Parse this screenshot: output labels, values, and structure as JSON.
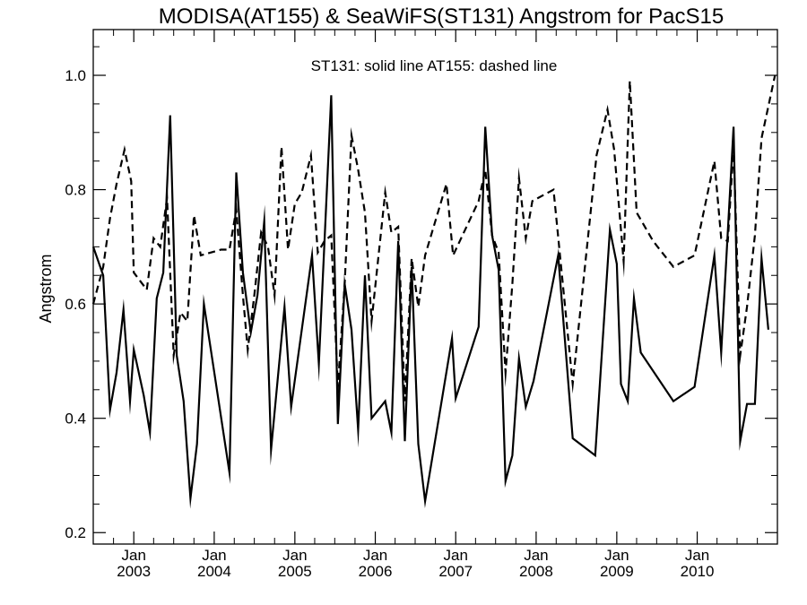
{
  "chart_data": {
    "type": "line",
    "title": "MODISA(AT155) & SeaWiFS(ST131)  Angstrom for PacS15",
    "annotation": "ST131: solid line   AT155: dashed line",
    "ylabel": "Angstrom",
    "xlabel": "",
    "xlim": [
      "2002-07-01",
      "2010-12-31"
    ],
    "ylim": [
      0.18,
      1.08
    ],
    "y_ticks": [
      0.2,
      0.4,
      0.6,
      0.8,
      1.0
    ],
    "y_tick_labels": [
      "0.2",
      "0.4",
      "0.6",
      "0.8",
      "1.0"
    ],
    "x_ticks": [
      {
        "date": "2003-01-01",
        "month": "Jan",
        "year": "2003"
      },
      {
        "date": "2004-01-01",
        "month": "Jan",
        "year": "2004"
      },
      {
        "date": "2005-01-01",
        "month": "Jan",
        "year": "2005"
      },
      {
        "date": "2006-01-01",
        "month": "Jan",
        "year": "2006"
      },
      {
        "date": "2007-01-01",
        "month": "Jan",
        "year": "2007"
      },
      {
        "date": "2008-01-01",
        "month": "Jan",
        "year": "2008"
      },
      {
        "date": "2009-01-01",
        "month": "Jan",
        "year": "2009"
      },
      {
        "date": "2010-01-01",
        "month": "Jan",
        "year": "2010"
      }
    ],
    "grid": false,
    "series": [
      {
        "line_style": "solid",
        "color": "#000000",
        "points": [
          [
            "2002-07-01",
            0.7
          ],
          [
            "2002-08-15",
            0.65
          ],
          [
            "2002-09-15",
            0.415
          ],
          [
            "2002-10-15",
            0.48
          ],
          [
            "2002-11-15",
            0.59
          ],
          [
            "2002-12-15",
            0.43
          ],
          [
            "2003-01-01",
            0.52
          ],
          [
            "2003-02-15",
            0.44
          ],
          [
            "2003-03-15",
            0.375
          ],
          [
            "2003-04-15",
            0.61
          ],
          [
            "2003-05-15",
            0.655
          ],
          [
            "2003-06-15",
            0.93
          ],
          [
            "2003-07-15",
            0.51
          ],
          [
            "2003-08-15",
            0.43
          ],
          [
            "2003-09-15",
            0.26
          ],
          [
            "2003-10-15",
            0.355
          ],
          [
            "2003-11-15",
            0.6
          ],
          [
            "2004-03-10",
            0.305
          ],
          [
            "2004-04-10",
            0.83
          ],
          [
            "2004-05-10",
            0.655
          ],
          [
            "2004-06-15",
            0.55
          ],
          [
            "2004-07-15",
            0.615
          ],
          [
            "2004-08-15",
            0.745
          ],
          [
            "2004-09-15",
            0.345
          ],
          [
            "2004-11-15",
            0.595
          ],
          [
            "2004-12-15",
            0.42
          ],
          [
            "2005-03-20",
            0.685
          ],
          [
            "2005-04-20",
            0.495
          ],
          [
            "2005-06-15",
            0.965
          ],
          [
            "2005-07-15",
            0.39
          ],
          [
            "2005-08-15",
            0.635
          ],
          [
            "2005-09-15",
            0.555
          ],
          [
            "2005-10-15",
            0.38
          ],
          [
            "2005-11-15",
            0.65
          ],
          [
            "2005-12-15",
            0.4
          ],
          [
            "2006-02-15",
            0.43
          ],
          [
            "2006-03-15",
            0.375
          ],
          [
            "2006-04-15",
            0.71
          ],
          [
            "2006-05-15",
            0.36
          ],
          [
            "2006-06-15",
            0.665
          ],
          [
            "2006-07-15",
            0.355
          ],
          [
            "2006-08-15",
            0.255
          ],
          [
            "2006-12-15",
            0.54
          ],
          [
            "2007-01-01",
            0.435
          ],
          [
            "2007-04-15",
            0.56
          ],
          [
            "2007-05-15",
            0.91
          ],
          [
            "2007-06-15",
            0.72
          ],
          [
            "2007-07-15",
            0.66
          ],
          [
            "2007-08-15",
            0.29
          ],
          [
            "2007-09-15",
            0.335
          ],
          [
            "2007-10-15",
            0.505
          ],
          [
            "2007-11-15",
            0.42
          ],
          [
            "2007-12-20",
            0.465
          ],
          [
            "2008-04-10",
            0.685
          ],
          [
            "2008-06-15",
            0.365
          ],
          [
            "2008-09-25",
            0.335
          ],
          [
            "2008-12-01",
            0.73
          ],
          [
            "2009-01-01",
            0.67
          ],
          [
            "2009-01-20",
            0.46
          ],
          [
            "2009-02-20",
            0.43
          ],
          [
            "2009-03-20",
            0.61
          ],
          [
            "2009-04-20",
            0.515
          ],
          [
            "2009-09-15",
            0.43
          ],
          [
            "2009-12-20",
            0.455
          ],
          [
            "2010-03-20",
            0.685
          ],
          [
            "2010-04-20",
            0.515
          ],
          [
            "2010-06-15",
            0.91
          ],
          [
            "2010-07-15",
            0.36
          ],
          [
            "2010-08-15",
            0.425
          ],
          [
            "2010-09-20",
            0.425
          ],
          [
            "2010-10-20",
            0.68
          ],
          [
            "2010-11-20",
            0.555
          ]
        ]
      },
      {
        "line_style": "dashed",
        "color": "#000000",
        "points": [
          [
            "2002-07-01",
            0.6
          ],
          [
            "2002-08-15",
            0.665
          ],
          [
            "2002-09-15",
            0.75
          ],
          [
            "2002-10-15",
            0.81
          ],
          [
            "2002-11-20",
            0.87
          ],
          [
            "2002-12-20",
            0.815
          ],
          [
            "2003-01-01",
            0.655
          ],
          [
            "2003-03-01",
            0.625
          ],
          [
            "2003-04-01",
            0.715
          ],
          [
            "2003-05-01",
            0.7
          ],
          [
            "2003-06-01",
            0.785
          ],
          [
            "2003-07-01",
            0.51
          ],
          [
            "2003-08-01",
            0.585
          ],
          [
            "2003-09-01",
            0.57
          ],
          [
            "2003-10-01",
            0.755
          ],
          [
            "2003-11-01",
            0.685
          ],
          [
            "2004-02-01",
            0.695
          ],
          [
            "2004-03-10",
            0.695
          ],
          [
            "2004-04-10",
            0.765
          ],
          [
            "2004-05-10",
            0.615
          ],
          [
            "2004-06-01",
            0.52
          ],
          [
            "2004-07-01",
            0.615
          ],
          [
            "2004-08-01",
            0.725
          ],
          [
            "2004-09-01",
            0.7
          ],
          [
            "2004-10-01",
            0.615
          ],
          [
            "2004-11-01",
            0.875
          ],
          [
            "2004-12-01",
            0.695
          ],
          [
            "2005-01-01",
            0.775
          ],
          [
            "2005-02-01",
            0.795
          ],
          [
            "2005-03-15",
            0.86
          ],
          [
            "2005-04-15",
            0.69
          ],
          [
            "2005-05-15",
            0.71
          ],
          [
            "2005-06-15",
            0.72
          ],
          [
            "2005-07-15",
            0.455
          ],
          [
            "2005-08-15",
            0.635
          ],
          [
            "2005-09-15",
            0.895
          ],
          [
            "2005-10-15",
            0.835
          ],
          [
            "2005-11-15",
            0.76
          ],
          [
            "2005-12-15",
            0.57
          ],
          [
            "2006-02-15",
            0.795
          ],
          [
            "2006-03-15",
            0.725
          ],
          [
            "2006-04-15",
            0.735
          ],
          [
            "2006-05-15",
            0.43
          ],
          [
            "2006-06-15",
            0.68
          ],
          [
            "2006-07-15",
            0.595
          ],
          [
            "2006-08-15",
            0.685
          ],
          [
            "2006-11-20",
            0.81
          ],
          [
            "2006-12-20",
            0.685
          ],
          [
            "2007-04-15",
            0.78
          ],
          [
            "2007-05-15",
            0.835
          ],
          [
            "2007-06-15",
            0.72
          ],
          [
            "2007-07-15",
            0.69
          ],
          [
            "2007-08-15",
            0.48
          ],
          [
            "2007-09-15",
            0.635
          ],
          [
            "2007-10-15",
            0.82
          ],
          [
            "2007-11-15",
            0.715
          ],
          [
            "2007-12-15",
            0.78
          ],
          [
            "2008-03-20",
            0.8
          ],
          [
            "2008-06-15",
            0.46
          ],
          [
            "2008-10-01",
            0.86
          ],
          [
            "2008-11-20",
            0.94
          ],
          [
            "2008-12-20",
            0.87
          ],
          [
            "2009-02-01",
            0.675
          ],
          [
            "2009-03-01",
            0.99
          ],
          [
            "2009-04-01",
            0.76
          ],
          [
            "2009-06-15",
            0.71
          ],
          [
            "2009-09-15",
            0.665
          ],
          [
            "2009-12-20",
            0.685
          ],
          [
            "2010-03-20",
            0.85
          ],
          [
            "2010-04-20",
            0.715
          ],
          [
            "2010-05-20",
            0.71
          ],
          [
            "2010-06-15",
            0.875
          ],
          [
            "2010-07-15",
            0.51
          ],
          [
            "2010-08-15",
            0.595
          ],
          [
            "2010-09-20",
            0.72
          ],
          [
            "2010-10-20",
            0.89
          ],
          [
            "2010-12-20",
            1.0
          ]
        ]
      }
    ]
  }
}
